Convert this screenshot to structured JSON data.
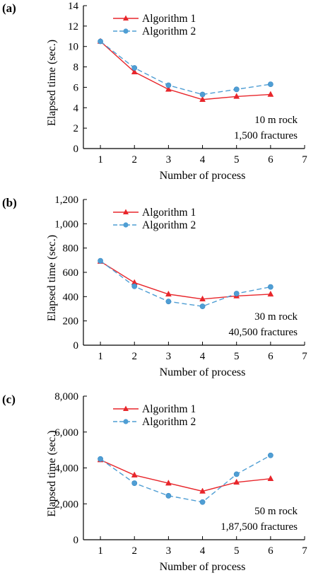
{
  "chart_data": [
    {
      "type": "line",
      "panel": "(a)",
      "xlabel": "Number of process",
      "ylabel": "Elapsed time (sec.)",
      "xlim": [
        0.5,
        7
      ],
      "ylim": [
        0,
        14
      ],
      "xticks": [
        1,
        2,
        3,
        4,
        5,
        6,
        7
      ],
      "yticks": [
        0,
        2,
        4,
        6,
        8,
        10,
        12,
        14
      ],
      "ytick_labels": [
        "0",
        "2",
        "4",
        "6",
        "8",
        "10",
        "12",
        "14"
      ],
      "x": [
        1,
        2,
        3,
        4,
        5,
        6
      ],
      "series": [
        {
          "name": "Algorithm 1",
          "values": [
            10.5,
            7.5,
            5.8,
            4.8,
            5.1,
            5.3
          ],
          "color": "#e8262b",
          "marker": "triangle",
          "dash": "solid"
        },
        {
          "name": "Algorithm 2",
          "values": [
            10.5,
            7.9,
            6.2,
            5.3,
            5.8,
            6.3
          ],
          "color": "#4f9ed4",
          "marker": "circle",
          "dash": "dashed"
        }
      ],
      "annotation": [
        "10 m rock",
        "1,500 fractures"
      ],
      "legend_position": "top-center",
      "grid": false
    },
    {
      "type": "line",
      "panel": "(b)",
      "xlabel": "Number of process",
      "ylabel": "Elapsed time (sec.)",
      "xlim": [
        0.5,
        7
      ],
      "ylim": [
        0,
        1200
      ],
      "xticks": [
        1,
        2,
        3,
        4,
        5,
        6,
        7
      ],
      "yticks": [
        0,
        200,
        400,
        600,
        800,
        1000,
        1200
      ],
      "ytick_labels": [
        "0",
        "200",
        "400",
        "600",
        "800",
        "1,000",
        "1,200"
      ],
      "x": [
        1,
        2,
        3,
        4,
        5,
        6
      ],
      "series": [
        {
          "name": "Algorithm 1",
          "values": [
            690,
            515,
            420,
            380,
            405,
            420
          ],
          "color": "#e8262b",
          "marker": "triangle",
          "dash": "solid"
        },
        {
          "name": "Algorithm 2",
          "values": [
            695,
            485,
            360,
            320,
            425,
            480
          ],
          "color": "#4f9ed4",
          "marker": "circle",
          "dash": "dashed"
        }
      ],
      "annotation": [
        "30 m rock",
        "40,500 fractures"
      ],
      "legend_position": "top-center",
      "grid": false
    },
    {
      "type": "line",
      "panel": "(c)",
      "xlabel": "Number of process",
      "ylabel": "Elapsed time (sec.)",
      "xlim": [
        0.5,
        7
      ],
      "ylim": [
        0,
        8000
      ],
      "xticks": [
        1,
        2,
        3,
        4,
        5,
        6,
        7
      ],
      "yticks": [
        0,
        2000,
        4000,
        6000,
        8000
      ],
      "ytick_labels": [
        "0",
        "2,000",
        "4,000",
        "6,000",
        "8,000"
      ],
      "x": [
        1,
        2,
        3,
        4,
        5,
        6
      ],
      "series": [
        {
          "name": "Algorithm 1",
          "values": [
            4450,
            3600,
            3150,
            2700,
            3200,
            3400
          ],
          "color": "#e8262b",
          "marker": "triangle",
          "dash": "solid"
        },
        {
          "name": "Algorithm 2",
          "values": [
            4500,
            3150,
            2450,
            2100,
            3650,
            4700
          ],
          "color": "#4f9ed4",
          "marker": "circle",
          "dash": "dashed"
        }
      ],
      "annotation": [
        "50 m rock",
        "1,87,500 fractures"
      ],
      "legend_position": "top-center",
      "grid": false
    }
  ]
}
